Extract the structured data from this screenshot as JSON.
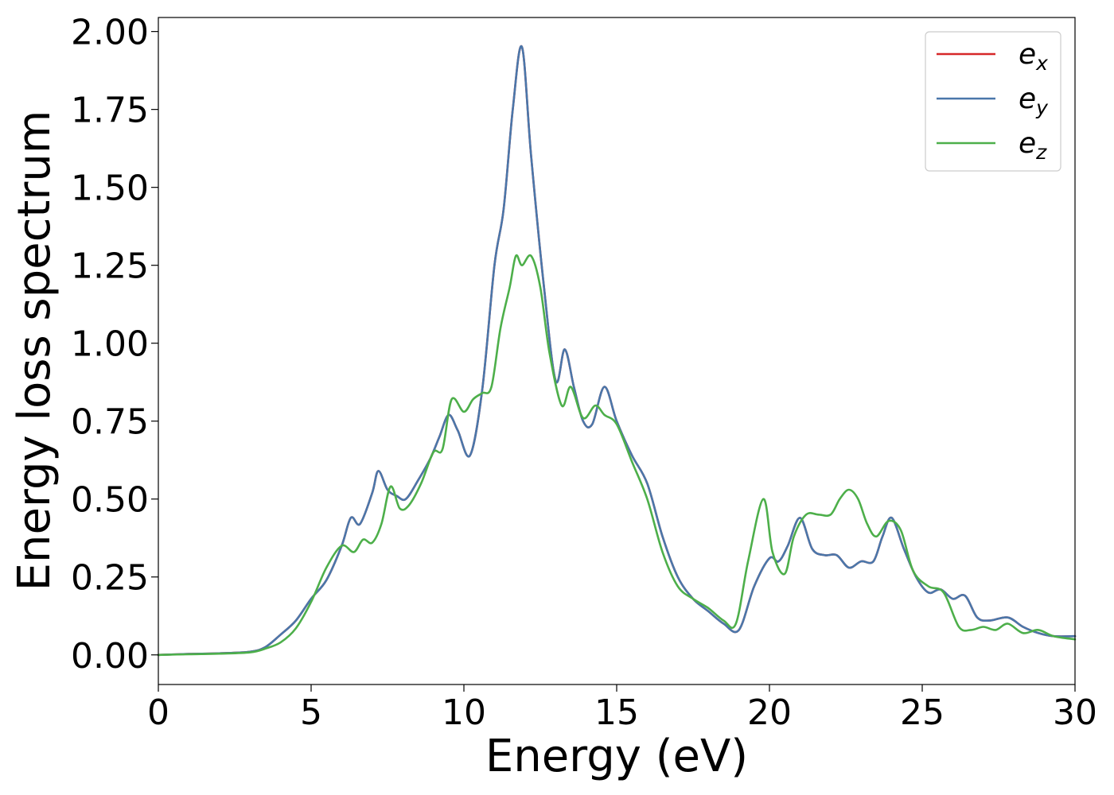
{
  "chart_data": {
    "type": "line",
    "title": "",
    "xlabel": "Energy (eV)",
    "ylabel": "Energy loss spectrum",
    "xlim": [
      0,
      30
    ],
    "ylim": [
      -0.095,
      2.045
    ],
    "x_ticks": [
      "0",
      "5",
      "10",
      "15",
      "20",
      "25",
      "30"
    ],
    "y_ticks": [
      "0.00",
      "0.25",
      "0.50",
      "0.75",
      "1.00",
      "1.25",
      "1.50",
      "1.75",
      "2.00"
    ],
    "grid": false,
    "legend_position": "top-right",
    "series": [
      {
        "name": "e",
        "subscript": "x",
        "color": "#d62728",
        "x": [
          0,
          1,
          2,
          3,
          3.5,
          4,
          4.5,
          5,
          5.5,
          6,
          6.3,
          6.6,
          7,
          7.2,
          7.5,
          7.8,
          8.1,
          8.5,
          8.9,
          9.2,
          9.5,
          9.8,
          10.2,
          10.6,
          11,
          11.3,
          11.6,
          11.9,
          12.2,
          12.6,
          13,
          13.3,
          13.6,
          13.9,
          14.2,
          14.6,
          15,
          15.5,
          16,
          16.5,
          17,
          17.5,
          18,
          18.5,
          19,
          19.5,
          20,
          20.3,
          20.6,
          21,
          21.4,
          21.8,
          22.2,
          22.6,
          23,
          23.4,
          23.7,
          24,
          24.4,
          24.8,
          25.2,
          25.6,
          26,
          26.4,
          26.8,
          27.2,
          27.8,
          28.3,
          28.8,
          29.3,
          30
        ],
        "values": [
          0,
          0.003,
          0.005,
          0.01,
          0.025,
          0.065,
          0.11,
          0.18,
          0.24,
          0.35,
          0.44,
          0.42,
          0.52,
          0.59,
          0.53,
          0.51,
          0.5,
          0.56,
          0.63,
          0.7,
          0.77,
          0.72,
          0.64,
          0.85,
          1.25,
          1.43,
          1.75,
          1.95,
          1.6,
          1.2,
          0.88,
          0.98,
          0.86,
          0.75,
          0.74,
          0.86,
          0.75,
          0.64,
          0.55,
          0.38,
          0.25,
          0.18,
          0.14,
          0.1,
          0.08,
          0.22,
          0.31,
          0.3,
          0.35,
          0.44,
          0.34,
          0.32,
          0.32,
          0.28,
          0.3,
          0.3,
          0.38,
          0.44,
          0.34,
          0.25,
          0.2,
          0.21,
          0.18,
          0.19,
          0.12,
          0.11,
          0.12,
          0.09,
          0.07,
          0.06,
          0.06
        ]
      },
      {
        "name": "e",
        "subscript": "y",
        "color": "#4a77aa",
        "x": [
          0,
          1,
          2,
          3,
          3.5,
          4,
          4.5,
          5,
          5.5,
          6,
          6.3,
          6.6,
          7,
          7.2,
          7.5,
          7.8,
          8.1,
          8.5,
          8.9,
          9.2,
          9.5,
          9.8,
          10.2,
          10.6,
          11,
          11.3,
          11.6,
          11.9,
          12.2,
          12.6,
          13,
          13.3,
          13.6,
          13.9,
          14.2,
          14.6,
          15,
          15.5,
          16,
          16.5,
          17,
          17.5,
          18,
          18.5,
          19,
          19.5,
          20,
          20.3,
          20.6,
          21,
          21.4,
          21.8,
          22.2,
          22.6,
          23,
          23.4,
          23.7,
          24,
          24.4,
          24.8,
          25.2,
          25.6,
          26,
          26.4,
          26.8,
          27.2,
          27.8,
          28.3,
          28.8,
          29.3,
          30
        ],
        "values": [
          0,
          0.003,
          0.005,
          0.01,
          0.025,
          0.065,
          0.11,
          0.18,
          0.24,
          0.35,
          0.44,
          0.42,
          0.52,
          0.59,
          0.53,
          0.51,
          0.5,
          0.56,
          0.63,
          0.7,
          0.77,
          0.72,
          0.64,
          0.85,
          1.25,
          1.43,
          1.75,
          1.95,
          1.6,
          1.2,
          0.88,
          0.98,
          0.86,
          0.75,
          0.74,
          0.86,
          0.75,
          0.64,
          0.55,
          0.38,
          0.25,
          0.18,
          0.14,
          0.1,
          0.08,
          0.22,
          0.31,
          0.3,
          0.35,
          0.44,
          0.34,
          0.32,
          0.32,
          0.28,
          0.3,
          0.3,
          0.38,
          0.44,
          0.34,
          0.25,
          0.2,
          0.21,
          0.18,
          0.19,
          0.12,
          0.11,
          0.12,
          0.09,
          0.07,
          0.06,
          0.06
        ]
      },
      {
        "name": "e",
        "subscript": "z",
        "color": "#4daf4a",
        "x": [
          0,
          1,
          2,
          3,
          3.5,
          4,
          4.5,
          5,
          5.5,
          6,
          6.4,
          6.7,
          7,
          7.3,
          7.6,
          7.9,
          8.2,
          8.6,
          9,
          9.3,
          9.6,
          10,
          10.3,
          10.6,
          10.9,
          11.2,
          11.5,
          11.7,
          11.9,
          12.2,
          12.5,
          12.8,
          13.2,
          13.5,
          13.9,
          14.3,
          14.6,
          15,
          15.5,
          16,
          16.5,
          17,
          17.5,
          18,
          18.5,
          18.9,
          19.3,
          19.8,
          20.1,
          20.5,
          20.8,
          21.2,
          21.6,
          22,
          22.3,
          22.6,
          22.9,
          23.2,
          23.5,
          23.9,
          24.3,
          24.7,
          25.2,
          25.7,
          26.2,
          26.6,
          27,
          27.4,
          27.8,
          28.3,
          28.8,
          29.3,
          30
        ],
        "values": [
          0,
          0.002,
          0.004,
          0.008,
          0.02,
          0.04,
          0.085,
          0.17,
          0.28,
          0.35,
          0.33,
          0.37,
          0.36,
          0.42,
          0.54,
          0.47,
          0.48,
          0.55,
          0.65,
          0.66,
          0.82,
          0.78,
          0.82,
          0.84,
          0.86,
          1.05,
          1.18,
          1.28,
          1.25,
          1.28,
          1.18,
          0.97,
          0.8,
          0.86,
          0.76,
          0.8,
          0.77,
          0.74,
          0.62,
          0.5,
          0.33,
          0.22,
          0.18,
          0.15,
          0.11,
          0.1,
          0.3,
          0.5,
          0.33,
          0.26,
          0.38,
          0.45,
          0.45,
          0.45,
          0.5,
          0.53,
          0.5,
          0.42,
          0.38,
          0.43,
          0.4,
          0.27,
          0.22,
          0.2,
          0.09,
          0.08,
          0.09,
          0.08,
          0.1,
          0.07,
          0.08,
          0.06,
          0.05
        ]
      }
    ]
  }
}
